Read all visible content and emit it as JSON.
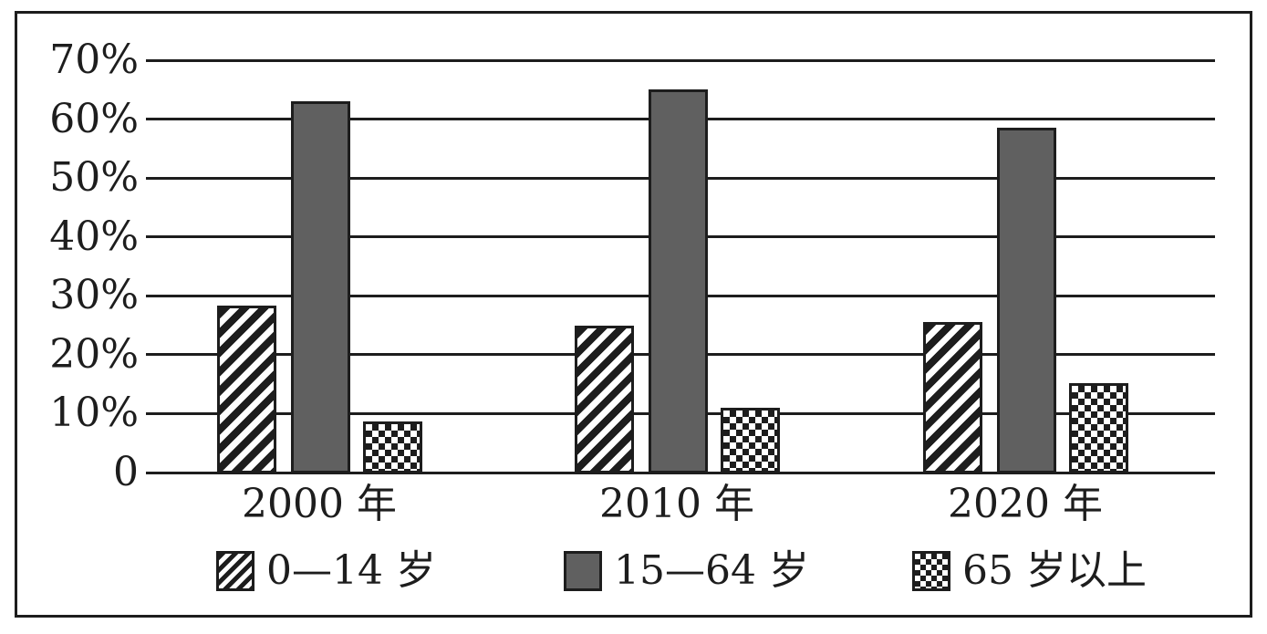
{
  "figure": {
    "background_color": "#ffffff",
    "frame_color": "#1d1d1d",
    "text_color": "#1d1d1d"
  },
  "chart_data": {
    "type": "bar",
    "title": "",
    "categories": [
      "2000 年",
      "2010 年",
      "2020 年"
    ],
    "series": [
      {
        "name": "0—14 岁",
        "pattern": "diagonal-hatch",
        "fill": "#ffffff",
        "stroke": "#1d1d1d",
        "values": [
          28.3,
          25.0,
          25.5
        ]
      },
      {
        "name": "15—64 岁",
        "pattern": "solid",
        "fill": "#606060",
        "stroke": "#1d1d1d",
        "values": [
          63.0,
          65.0,
          58.5
        ]
      },
      {
        "name": "65 岁以上",
        "pattern": "checkerboard",
        "fill": "#ffffff",
        "stroke": "#1d1d1d",
        "values": [
          8.6,
          11.0,
          15.2
        ]
      }
    ],
    "xlabel": "",
    "ylabel": "",
    "ylim": [
      0,
      70
    ],
    "ytick_step": 10,
    "ytick_labels": [
      "70%",
      "60%",
      "50%",
      "40%",
      "30%",
      "20%",
      "10%",
      "0"
    ],
    "grid": "horizontal",
    "legend_position": "bottom"
  }
}
